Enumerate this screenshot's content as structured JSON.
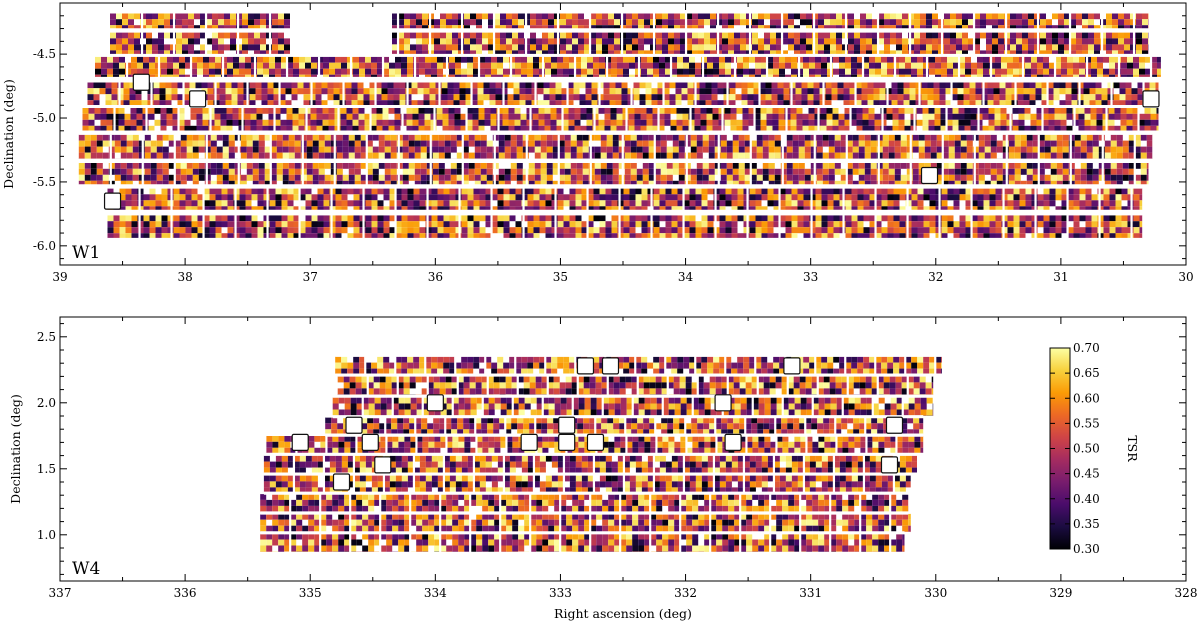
{
  "chart_data": [
    {
      "type": "heatmap",
      "panel_label": "W1",
      "ylabel": "Declination (deg)",
      "xlabel": "",
      "xlim": [
        39,
        30
      ],
      "ylim": [
        -6.15,
        -4.1
      ],
      "x_ticks": [
        39,
        38,
        37,
        36,
        35,
        34,
        33,
        32,
        31,
        30
      ],
      "y_ticks": [
        -6.0,
        -5.5,
        -5.0,
        -4.5
      ],
      "y_tick_labels": [
        "-6.0",
        "-5.5",
        "-5.0",
        "-4.5"
      ],
      "rows": [
        {
          "dec": [
            -4.3,
            -4.18
          ],
          "ra": [
            38.6,
            30.3
          ],
          "gaps": [
            [
              37.15,
              36.35
            ]
          ]
        },
        {
          "dec": [
            -4.5,
            -4.33
          ],
          "ra": [
            38.6,
            30.3
          ],
          "gaps": [
            [
              37.15,
              36.35
            ]
          ]
        },
        {
          "dec": [
            -4.68,
            -4.52
          ],
          "ra": [
            38.72,
            30.2
          ],
          "gaps": []
        },
        {
          "dec": [
            -4.9,
            -4.72
          ],
          "ra": [
            38.78,
            30.22
          ],
          "gaps": []
        },
        {
          "dec": [
            -5.1,
            -4.92
          ],
          "ra": [
            38.82,
            30.22
          ],
          "gaps": []
        },
        {
          "dec": [
            -5.32,
            -5.13
          ],
          "ra": [
            38.85,
            30.27
          ],
          "gaps": []
        },
        {
          "dec": [
            -5.52,
            -5.35
          ],
          "ra": [
            38.85,
            30.3
          ],
          "gaps": []
        },
        {
          "dec": [
            -5.72,
            -5.55
          ],
          "ra": [
            38.62,
            30.35
          ],
          "gaps": []
        },
        {
          "dec": [
            -5.94,
            -5.76
          ],
          "ra": [
            38.62,
            30.35
          ],
          "gaps": []
        }
      ],
      "masked_pointings": [
        {
          "ra": 38.35,
          "dec": -4.72
        },
        {
          "ra": 37.9,
          "dec": -4.85
        },
        {
          "ra": 32.05,
          "dec": -5.45
        },
        {
          "ra": 30.28,
          "dec": -4.85
        },
        {
          "ra": 38.58,
          "dec": -5.65
        }
      ]
    },
    {
      "type": "heatmap",
      "panel_label": "W4",
      "ylabel": "Declination (deg)",
      "xlabel": "Right ascension (deg)",
      "xlim": [
        337,
        328
      ],
      "ylim": [
        0.65,
        2.65
      ],
      "x_ticks": [
        337,
        336,
        335,
        334,
        333,
        332,
        331,
        330,
        329,
        328
      ],
      "y_ticks": [
        1.0,
        1.5,
        2.0,
        2.5
      ],
      "y_tick_labels": [
        "1.0",
        "1.5",
        "2.0",
        "2.5"
      ],
      "rows": [
        {
          "dec": [
            2.22,
            2.35
          ],
          "ra": [
            334.8,
            329.95
          ],
          "gaps": []
        },
        {
          "dec": [
            2.06,
            2.2
          ],
          "ra": [
            334.78,
            330.02
          ],
          "gaps": []
        },
        {
          "dec": [
            1.9,
            2.04
          ],
          "ra": [
            334.82,
            330.02
          ],
          "gaps": []
        },
        {
          "dec": [
            1.76,
            1.89
          ],
          "ra": [
            334.88,
            330.1
          ],
          "gaps": []
        },
        {
          "dec": [
            1.62,
            1.75
          ],
          "ra": [
            335.35,
            330.1
          ],
          "gaps": []
        },
        {
          "dec": [
            1.47,
            1.6
          ],
          "ra": [
            335.37,
            330.15
          ],
          "gaps": []
        },
        {
          "dec": [
            1.32,
            1.45
          ],
          "ra": [
            335.37,
            330.2
          ],
          "gaps": []
        },
        {
          "dec": [
            1.17,
            1.31
          ],
          "ra": [
            335.4,
            330.22
          ],
          "gaps": []
        },
        {
          "dec": [
            1.02,
            1.16
          ],
          "ra": [
            335.4,
            330.2
          ],
          "gaps": []
        },
        {
          "dec": [
            0.87,
            1.01
          ],
          "ra": [
            335.4,
            330.25
          ],
          "gaps": []
        }
      ],
      "masked_pointings": [
        {
          "ra": 332.8,
          "dec": 2.28
        },
        {
          "ra": 332.6,
          "dec": 2.28
        },
        {
          "ra": 331.15,
          "dec": 2.28
        },
        {
          "ra": 334.0,
          "dec": 2.0
        },
        {
          "ra": 331.7,
          "dec": 2.0
        },
        {
          "ra": 334.65,
          "dec": 1.83
        },
        {
          "ra": 332.95,
          "dec": 1.83
        },
        {
          "ra": 330.33,
          "dec": 1.83
        },
        {
          "ra": 335.08,
          "dec": 1.7
        },
        {
          "ra": 334.52,
          "dec": 1.7
        },
        {
          "ra": 333.25,
          "dec": 1.7
        },
        {
          "ra": 332.95,
          "dec": 1.7
        },
        {
          "ra": 332.72,
          "dec": 1.7
        },
        {
          "ra": 331.62,
          "dec": 1.7
        },
        {
          "ra": 334.42,
          "dec": 1.53
        },
        {
          "ra": 330.37,
          "dec": 1.53
        },
        {
          "ra": 334.75,
          "dec": 1.4
        }
      ]
    }
  ],
  "colorbar": {
    "label": "TSR",
    "min": 0.3,
    "max": 0.7,
    "ticks": [
      "0.70",
      "0.65",
      "0.60",
      "0.55",
      "0.50",
      "0.45",
      "0.40",
      "0.35",
      "0.30"
    ],
    "colormap": "inferno",
    "stops": [
      "#000004",
      "#1b0c41",
      "#4a0c6b",
      "#781c6d",
      "#a52c60",
      "#cf4446",
      "#ed6925",
      "#fb9b06",
      "#f7d13d",
      "#fcffa4"
    ]
  }
}
